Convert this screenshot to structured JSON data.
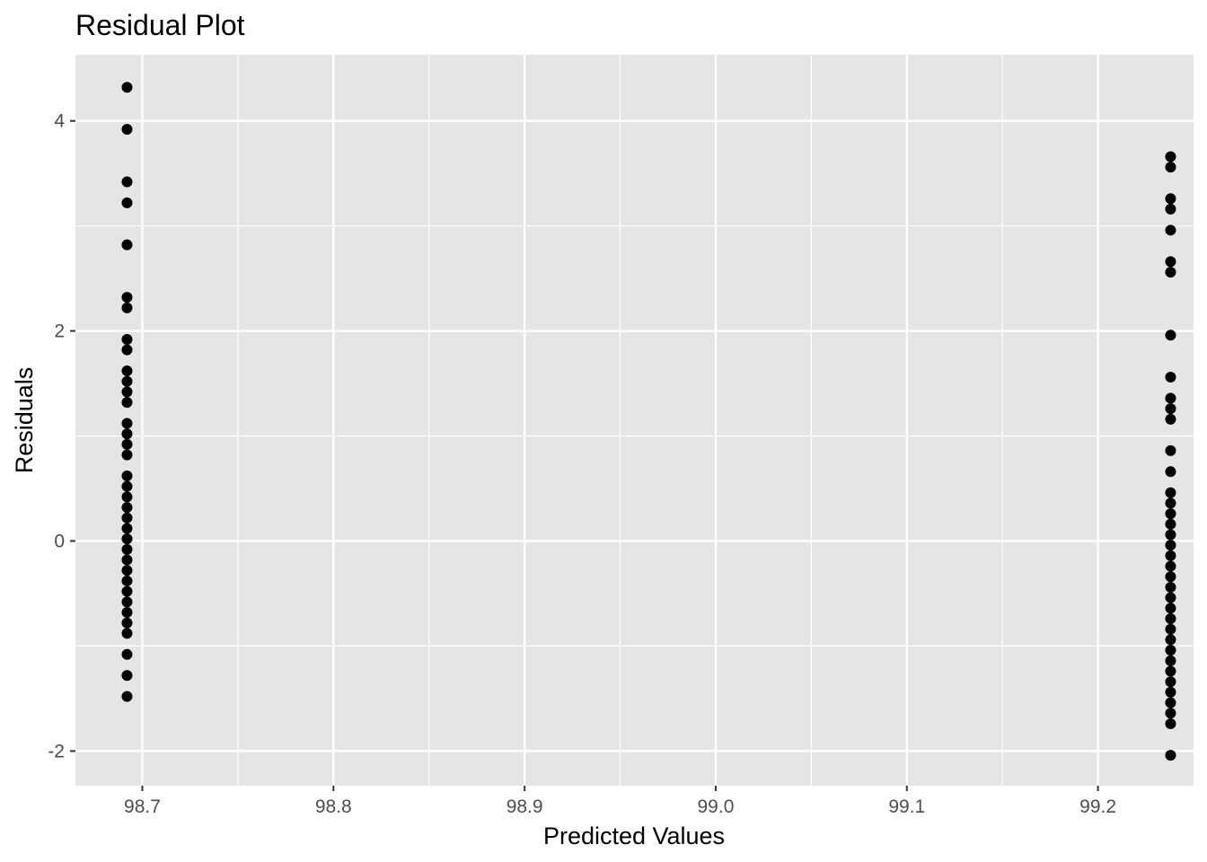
{
  "chart_data": {
    "type": "scatter",
    "title": "Residual Plot",
    "xlabel": "Predicted Values",
    "ylabel": "Residuals",
    "xlim": [
      98.665,
      99.25
    ],
    "ylim": [
      -2.33,
      4.63
    ],
    "x_ticks": [
      {
        "value": 98.7,
        "label": "98.7"
      },
      {
        "value": 98.8,
        "label": "98.8"
      },
      {
        "value": 98.9,
        "label": "98.9"
      },
      {
        "value": 99.0,
        "label": "99.0"
      },
      {
        "value": 99.1,
        "label": "99.1"
      },
      {
        "value": 99.2,
        "label": "99.2"
      }
    ],
    "y_ticks": [
      {
        "value": -2,
        "label": "-2"
      },
      {
        "value": 0,
        "label": "0"
      },
      {
        "value": 2,
        "label": "2"
      },
      {
        "value": 4,
        "label": "4"
      }
    ],
    "grid": true,
    "panel_background": "#e5e5e5",
    "grid_color": "#ffffff",
    "point_color": "#000000",
    "series": [
      {
        "x": 98.692,
        "y": [
          4.32,
          3.92,
          3.42,
          3.22,
          2.82,
          2.32,
          2.22,
          1.92,
          1.82,
          1.62,
          1.52,
          1.42,
          1.32,
          1.12,
          1.02,
          0.92,
          0.82,
          0.62,
          0.52,
          0.42,
          0.32,
          0.22,
          0.12,
          0.02,
          -0.08,
          -0.18,
          -0.28,
          -0.38,
          -0.48,
          -0.58,
          -0.68,
          -0.78,
          -0.88,
          -1.08,
          -1.28,
          -1.48
        ]
      },
      {
        "x": 99.238,
        "y": [
          3.66,
          3.56,
          3.26,
          3.16,
          2.96,
          2.66,
          2.56,
          1.96,
          1.56,
          1.36,
          1.26,
          1.16,
          0.86,
          0.66,
          0.46,
          0.36,
          0.26,
          0.16,
          0.06,
          -0.04,
          -0.14,
          -0.24,
          -0.34,
          -0.44,
          -0.54,
          -0.64,
          -0.74,
          -0.84,
          -0.94,
          -1.04,
          -1.14,
          -1.24,
          -1.34,
          -1.44,
          -1.54,
          -1.64,
          -1.74,
          -2.04
        ]
      }
    ]
  }
}
